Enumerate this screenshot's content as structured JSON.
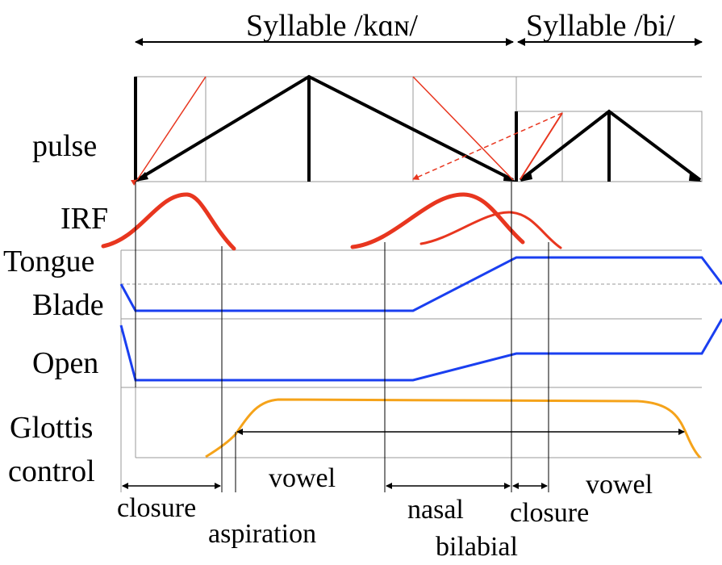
{
  "syllables": {
    "first": "Syllable /kɑɴ/",
    "second": "Syllable /bi/"
  },
  "rows": {
    "pulse": "pulse",
    "irf": "IRF",
    "tongue_line1": "Tongue",
    "tongue_line2": "Blade",
    "open": "Open",
    "glottis_line1": "Glottis",
    "glottis_line2": "control"
  },
  "phases": {
    "closure_1": "closure",
    "aspiration": "aspiration",
    "vowel_1": "vowel",
    "nasal": "nasal",
    "bilabial": "bilabial",
    "closure_2": "closure",
    "vowel_2": "vowel"
  },
  "colors": {
    "pulse": "#000000",
    "irf": "#e8361f",
    "articulator": "#1a3ff0",
    "glottis": "#f5a31a",
    "grid": "#999999"
  }
}
